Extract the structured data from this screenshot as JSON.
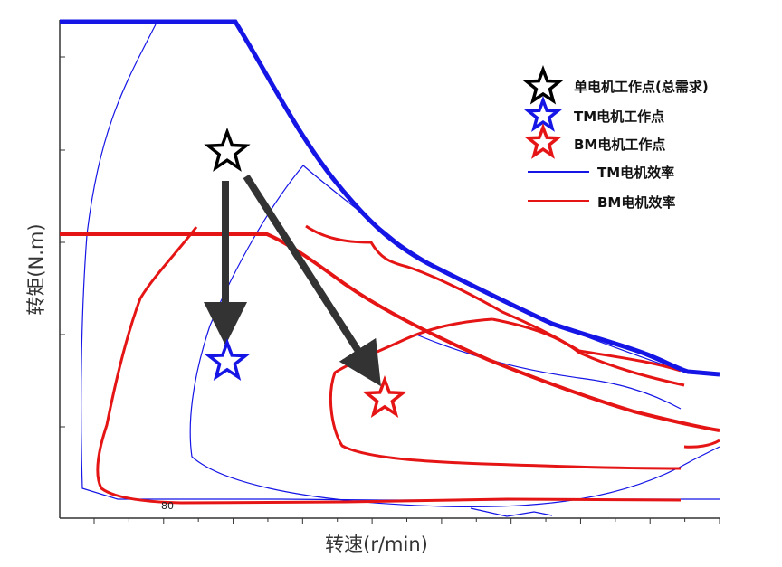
{
  "chart_data": {
    "type": "line",
    "xlabel": "转速(r/min)",
    "ylabel": "转矩(N.m)",
    "x_tick_count": 19,
    "y_tick_count": 5,
    "grid": false,
    "legend_position": "top-right",
    "legend": [
      {
        "label": "单电机工作点(总需求)",
        "marker": "star",
        "color": "#000000"
      },
      {
        "label": "TM电机工作点",
        "marker": "star",
        "color": "#1515e6"
      },
      {
        "label": "BM电机工作点",
        "marker": "star",
        "color": "#e61515"
      },
      {
        "label": "TM电机效率",
        "marker": "line",
        "color": "#1515e6"
      },
      {
        "label": "BM电机效率",
        "marker": "line",
        "color": "#e61515"
      }
    ],
    "colors": {
      "tm": "#1515e6",
      "bm": "#e61515",
      "total": "#000000",
      "arrow": "#333333"
    },
    "contour_labels": [
      {
        "text": "80"
      }
    ]
  }
}
